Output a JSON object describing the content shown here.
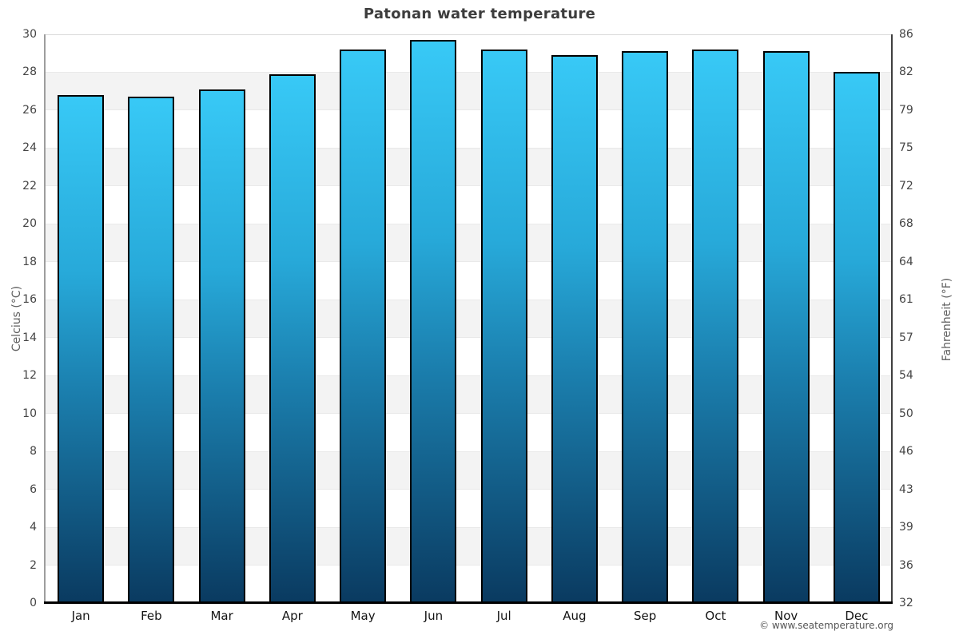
{
  "title": "Patonan water temperature",
  "footer": "© www.seatemperature.org",
  "chart_data": {
    "type": "bar",
    "title": "Patonan water temperature",
    "categories": [
      "Jan",
      "Feb",
      "Mar",
      "Apr",
      "May",
      "Jun",
      "Jul",
      "Aug",
      "Sep",
      "Oct",
      "Nov",
      "Dec"
    ],
    "values": [
      26.8,
      26.7,
      27.1,
      27.9,
      29.2,
      29.7,
      29.2,
      28.9,
      29.1,
      29.2,
      29.1,
      28.0
    ],
    "unit": "°C",
    "ylabel_left": "Celcius (°C)",
    "ylabel_right": "Fahrenheit (°F)",
    "ylim": [
      0,
      30
    ],
    "yticks_celsius": [
      30,
      28,
      26,
      24,
      22,
      20,
      18,
      16,
      14,
      12,
      10,
      8,
      6,
      4,
      2,
      0
    ],
    "yticks_fahrenheit": [
      86,
      82,
      79,
      75,
      72,
      68,
      64,
      61,
      57,
      54,
      50,
      46,
      43,
      39,
      36,
      32
    ],
    "grid": "alternating horizontal bands every 2°C",
    "legend": "none",
    "colors": {
      "bar_gradient_top": "#38c9f6",
      "bar_gradient_upper_mid": "#27a9d9",
      "bar_gradient_lower_mid": "#1b7fae",
      "bar_gradient_bottom": "#0a3a60",
      "bar_border": "#000000",
      "band_shade": "#f3f3f3",
      "background": "#ffffff",
      "baseline": "#000000"
    }
  }
}
